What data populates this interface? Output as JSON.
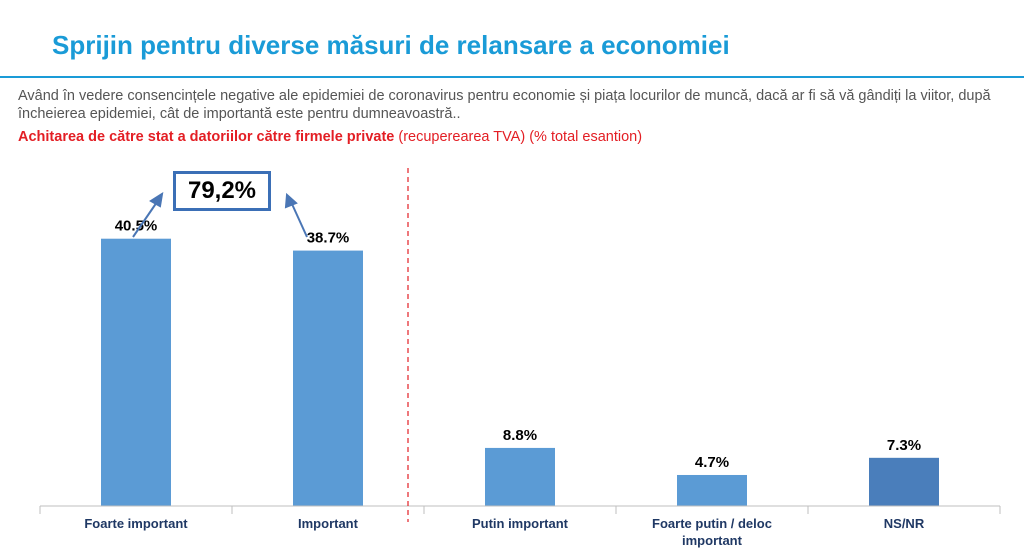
{
  "header": {
    "title": "Sprijin pentru diverse măsuri de relansare a economiei",
    "question": "Având în vedere consencințele negative ale epidemiei de coronavirus pentru economie și piața locurilor de muncă, dacă ar fi să vă gândiți la viitor, după încheierea epidemiei, cât de importantă este pentru dumneavoastră..",
    "subtitle_bold": "Achitarea de către stat a datoriilor către firmele private",
    "subtitle_rest": " (recuperearea TVA) (% total esantion)"
  },
  "annotation": {
    "total_label": "79,2%"
  },
  "colors": {
    "title": "#1a9bd7",
    "subtitle": "#e31e24",
    "bar": "#5b9bd5",
    "bar_nsnr": "#4a7ebb",
    "arrow": "#4a76b5",
    "divider": "#e31e24"
  },
  "chart_data": {
    "type": "bar",
    "categories": [
      [
        "Foarte important"
      ],
      [
        "Important"
      ],
      [
        "Putin important"
      ],
      [
        "Foarte putin / deloc",
        "important"
      ],
      [
        "NS/NR"
      ]
    ],
    "values": [
      40.5,
      38.7,
      8.8,
      4.7,
      7.3
    ],
    "value_labels": [
      "40.5%",
      "38.7%",
      "8.8%",
      "4.7%",
      "7.3%"
    ],
    "ylim": [
      0,
      45
    ],
    "grid": false,
    "legend": "none"
  }
}
